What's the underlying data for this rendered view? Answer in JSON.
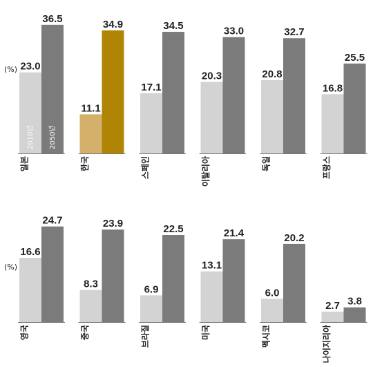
{
  "unit_label": "(%)",
  "colors": {
    "bar_2010": "#d3d3d3",
    "bar_2050": "#7b7b7b",
    "highlight_2010": "#d4b06a",
    "highlight_2050": "#b08506",
    "axis": "#777777",
    "text": "#222222"
  },
  "chart_data": [
    {
      "type": "bar",
      "ylim": [
        0,
        40
      ],
      "series_labels_in_bar": [
        "2010년",
        "2050년"
      ],
      "categories": [
        "일본",
        "한국",
        "스페인",
        "이탈리아",
        "독일",
        "프랑스"
      ],
      "series": [
        {
          "values": [
            23.0,
            11.1,
            17.1,
            20.3,
            20.8,
            16.8
          ]
        },
        {
          "values": [
            36.5,
            34.9,
            34.5,
            33.0,
            32.7,
            25.5
          ]
        }
      ],
      "highlight_category": "한국"
    },
    {
      "type": "bar",
      "ylim": [
        0,
        40
      ],
      "categories": [
        "영국",
        "중국",
        "브라질",
        "미국",
        "멕시코",
        "나이지리아"
      ],
      "series": [
        {
          "values": [
            16.6,
            8.3,
            6.9,
            13.1,
            6.0,
            2.7
          ]
        },
        {
          "values": [
            24.7,
            23.9,
            22.5,
            21.4,
            20.2,
            3.8
          ]
        }
      ]
    }
  ]
}
